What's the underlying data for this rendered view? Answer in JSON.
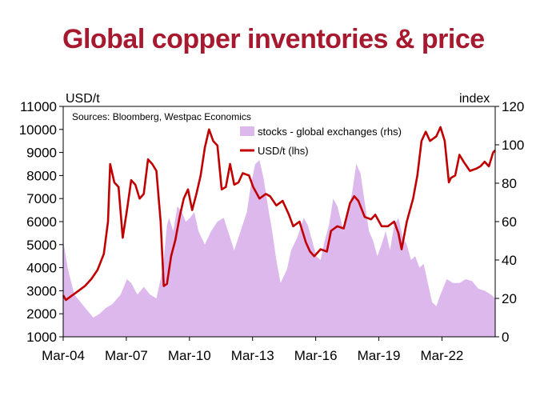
{
  "chart_data": {
    "type": "line",
    "title": "Global copper inventories & price",
    "source": "Sources: Bloomberg, Westpac Economics",
    "left_unit": "USD/t",
    "right_unit": "index",
    "x_ticks": [
      "Mar-04",
      "Mar-07",
      "Mar-10",
      "Mar-13",
      "Mar-16",
      "Mar-19",
      "Mar-22"
    ],
    "x_range": [
      2004.17,
      2024.7
    ],
    "y_left_range": [
      1000,
      11000
    ],
    "y_left_ticks": [
      1000,
      2000,
      3000,
      4000,
      5000,
      6000,
      7000,
      8000,
      9000,
      10000,
      11000
    ],
    "y_right_range": [
      0,
      120
    ],
    "y_right_ticks": [
      0,
      20,
      40,
      60,
      80,
      100,
      120
    ],
    "legend": {
      "position": "top-right"
    },
    "colors": {
      "stocks": "#dcb8ec",
      "price": "#c00000",
      "title": "#a6192e"
    },
    "series": [
      {
        "name": "stocks - global exchanges (rhs)",
        "type": "area",
        "axis": "right",
        "points": [
          [
            2004.17,
            50
          ],
          [
            2004.4,
            35
          ],
          [
            2004.7,
            22
          ],
          [
            2005.0,
            18
          ],
          [
            2005.3,
            14
          ],
          [
            2005.6,
            10
          ],
          [
            2005.9,
            12
          ],
          [
            2006.2,
            15
          ],
          [
            2006.5,
            17
          ],
          [
            2006.9,
            22
          ],
          [
            2007.2,
            30
          ],
          [
            2007.4,
            28
          ],
          [
            2007.7,
            22
          ],
          [
            2008.0,
            26
          ],
          [
            2008.3,
            22
          ],
          [
            2008.6,
            20
          ],
          [
            2008.9,
            35
          ],
          [
            2009.1,
            58
          ],
          [
            2009.2,
            62
          ],
          [
            2009.4,
            55
          ],
          [
            2009.6,
            68
          ],
          [
            2009.8,
            65
          ],
          [
            2010.0,
            60
          ],
          [
            2010.2,
            62
          ],
          [
            2010.4,
            65
          ],
          [
            2010.6,
            55
          ],
          [
            2010.9,
            48
          ],
          [
            2011.2,
            55
          ],
          [
            2011.5,
            60
          ],
          [
            2011.8,
            62
          ],
          [
            2012.0,
            55
          ],
          [
            2012.3,
            45
          ],
          [
            2012.6,
            55
          ],
          [
            2012.9,
            65
          ],
          [
            2013.1,
            80
          ],
          [
            2013.3,
            90
          ],
          [
            2013.5,
            92
          ],
          [
            2013.7,
            82
          ],
          [
            2013.9,
            68
          ],
          [
            2014.1,
            55
          ],
          [
            2014.3,
            40
          ],
          [
            2014.5,
            28
          ],
          [
            2014.8,
            35
          ],
          [
            2015.0,
            45
          ],
          [
            2015.3,
            52
          ],
          [
            2015.6,
            62
          ],
          [
            2015.8,
            58
          ],
          [
            2016.0,
            50
          ],
          [
            2016.2,
            42
          ],
          [
            2016.4,
            40
          ],
          [
            2016.6,
            50
          ],
          [
            2016.8,
            58
          ],
          [
            2017.0,
            72
          ],
          [
            2017.2,
            68
          ],
          [
            2017.5,
            55
          ],
          [
            2017.7,
            65
          ],
          [
            2017.9,
            75
          ],
          [
            2018.1,
            90
          ],
          [
            2018.3,
            85
          ],
          [
            2018.5,
            70
          ],
          [
            2018.7,
            55
          ],
          [
            2018.9,
            50
          ],
          [
            2019.1,
            42
          ],
          [
            2019.3,
            48
          ],
          [
            2019.5,
            55
          ],
          [
            2019.7,
            45
          ],
          [
            2019.9,
            58
          ],
          [
            2020.1,
            62
          ],
          [
            2020.3,
            52
          ],
          [
            2020.5,
            48
          ],
          [
            2020.7,
            40
          ],
          [
            2020.9,
            42
          ],
          [
            2021.1,
            36
          ],
          [
            2021.3,
            38
          ],
          [
            2021.5,
            28
          ],
          [
            2021.7,
            18
          ],
          [
            2021.9,
            16
          ],
          [
            2022.1,
            22
          ],
          [
            2022.4,
            30
          ],
          [
            2022.7,
            28
          ],
          [
            2023.0,
            28
          ],
          [
            2023.3,
            30
          ],
          [
            2023.6,
            29
          ],
          [
            2023.9,
            25
          ],
          [
            2024.2,
            24
          ],
          [
            2024.5,
            22
          ],
          [
            2024.7,
            20
          ]
        ]
      },
      {
        "name": "USD/t (lhs)",
        "type": "line",
        "axis": "left",
        "points": [
          [
            2004.17,
            2800
          ],
          [
            2004.3,
            2600
          ],
          [
            2004.6,
            2800
          ],
          [
            2004.9,
            3000
          ],
          [
            2005.2,
            3200
          ],
          [
            2005.5,
            3500
          ],
          [
            2005.8,
            3900
          ],
          [
            2006.1,
            4600
          ],
          [
            2006.3,
            6000
          ],
          [
            2006.4,
            8500
          ],
          [
            2006.6,
            7700
          ],
          [
            2006.8,
            7500
          ],
          [
            2007.0,
            5300
          ],
          [
            2007.2,
            6500
          ],
          [
            2007.4,
            7800
          ],
          [
            2007.6,
            7600
          ],
          [
            2007.8,
            7000
          ],
          [
            2008.0,
            7200
          ],
          [
            2008.2,
            8700
          ],
          [
            2008.4,
            8500
          ],
          [
            2008.6,
            8200
          ],
          [
            2008.8,
            6000
          ],
          [
            2008.95,
            3200
          ],
          [
            2009.1,
            3300
          ],
          [
            2009.3,
            4500
          ],
          [
            2009.5,
            5200
          ],
          [
            2009.7,
            6200
          ],
          [
            2009.9,
            7000
          ],
          [
            2010.1,
            7400
          ],
          [
            2010.3,
            6500
          ],
          [
            2010.5,
            7200
          ],
          [
            2010.7,
            8000
          ],
          [
            2010.9,
            9200
          ],
          [
            2011.1,
            10000
          ],
          [
            2011.3,
            9500
          ],
          [
            2011.5,
            9300
          ],
          [
            2011.7,
            7400
          ],
          [
            2011.9,
            7500
          ],
          [
            2012.1,
            8500
          ],
          [
            2012.3,
            7600
          ],
          [
            2012.5,
            7700
          ],
          [
            2012.7,
            8100
          ],
          [
            2013.0,
            8000
          ],
          [
            2013.2,
            7500
          ],
          [
            2013.5,
            7000
          ],
          [
            2013.8,
            7200
          ],
          [
            2014.0,
            7100
          ],
          [
            2014.3,
            6700
          ],
          [
            2014.6,
            6900
          ],
          [
            2014.9,
            6300
          ],
          [
            2015.1,
            5800
          ],
          [
            2015.4,
            6000
          ],
          [
            2015.7,
            5100
          ],
          [
            2015.9,
            4700
          ],
          [
            2016.1,
            4500
          ],
          [
            2016.4,
            4800
          ],
          [
            2016.7,
            4700
          ],
          [
            2016.9,
            5600
          ],
          [
            2017.2,
            5800
          ],
          [
            2017.5,
            5700
          ],
          [
            2017.8,
            6800
          ],
          [
            2018.0,
            7100
          ],
          [
            2018.2,
            6900
          ],
          [
            2018.5,
            6200
          ],
          [
            2018.8,
            6100
          ],
          [
            2019.0,
            6300
          ],
          [
            2019.3,
            5800
          ],
          [
            2019.6,
            5800
          ],
          [
            2019.9,
            6000
          ],
          [
            2020.1,
            5500
          ],
          [
            2020.25,
            4800
          ],
          [
            2020.5,
            6000
          ],
          [
            2020.8,
            7000
          ],
          [
            2021.0,
            8000
          ],
          [
            2021.2,
            9500
          ],
          [
            2021.4,
            9900
          ],
          [
            2021.6,
            9500
          ],
          [
            2021.9,
            9700
          ],
          [
            2022.1,
            10100
          ],
          [
            2022.3,
            9500
          ],
          [
            2022.5,
            7700
          ],
          [
            2022.6,
            7900
          ],
          [
            2022.8,
            8000
          ],
          [
            2023.0,
            8900
          ],
          [
            2023.2,
            8600
          ],
          [
            2023.5,
            8200
          ],
          [
            2023.8,
            8300
          ],
          [
            2024.0,
            8400
          ],
          [
            2024.2,
            8600
          ],
          [
            2024.4,
            8400
          ],
          [
            2024.6,
            9000
          ],
          [
            2024.7,
            9100
          ]
        ]
      }
    ]
  }
}
